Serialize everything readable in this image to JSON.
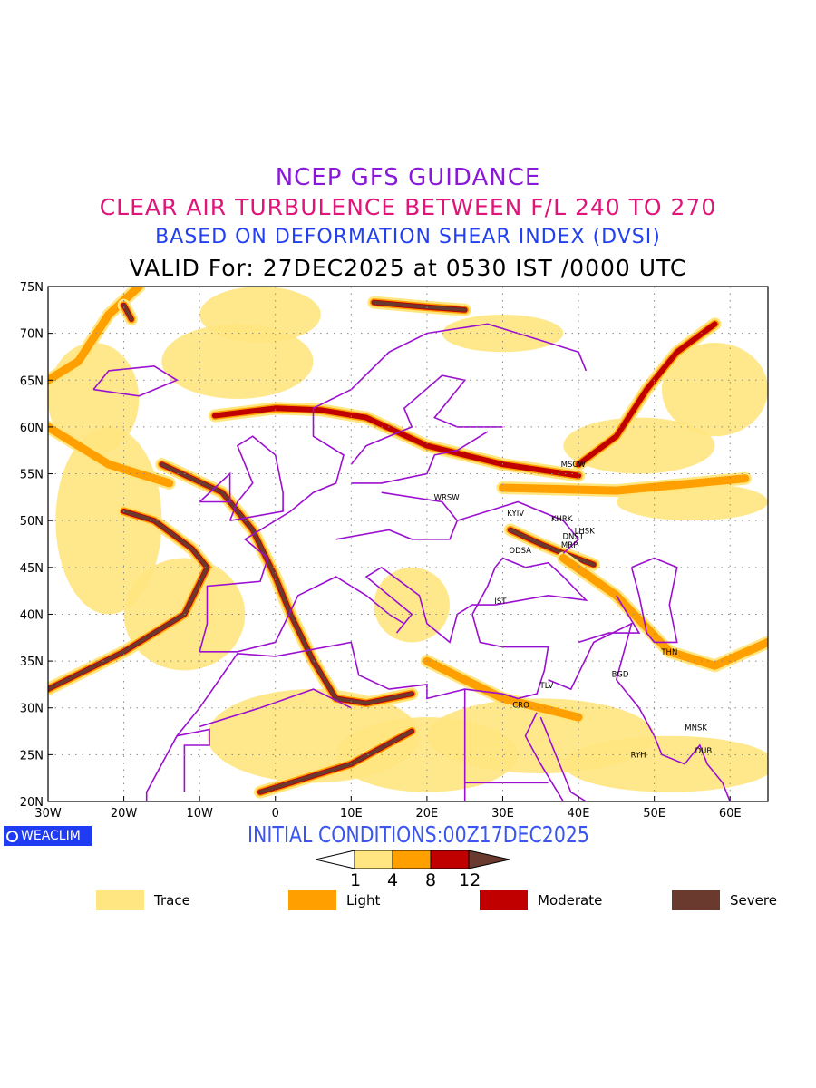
{
  "titles": {
    "line1": "NCEP GFS GUIDANCE",
    "line2": "CLEAR AIR TURBULENCE BETWEEN F/L 240 TO 270",
    "line3": "BASED ON DEFORMATION SHEAR INDEX (DVSI)",
    "line4": "VALID For: 27DEC2025 at 0530 IST /0000 UTC"
  },
  "map": {
    "lon_range": [
      -30,
      65
    ],
    "lat_range": [
      20,
      75
    ],
    "lon_ticks": [
      "30W",
      "20W",
      "10W",
      "0",
      "10E",
      "20E",
      "30E",
      "40E",
      "50E",
      "60E"
    ],
    "lat_ticks": [
      "75N",
      "70N",
      "65N",
      "60N",
      "55N",
      "50N",
      "45N",
      "40N",
      "35N",
      "30N",
      "25N",
      "20N"
    ],
    "cities": [
      {
        "name": "MSCW",
        "lon": 39.3,
        "lat": 56.0
      },
      {
        "name": "WRSW",
        "lon": 22.6,
        "lat": 52.5
      },
      {
        "name": "KYIV",
        "lon": 31.7,
        "lat": 50.8
      },
      {
        "name": "KHRK",
        "lon": 37.8,
        "lat": 50.2
      },
      {
        "name": "LHSK",
        "lon": 40.8,
        "lat": 48.9
      },
      {
        "name": "DNST",
        "lon": 39.3,
        "lat": 48.3
      },
      {
        "name": "MRP",
        "lon": 38.8,
        "lat": 47.4
      },
      {
        "name": "ODSA",
        "lon": 32.3,
        "lat": 46.8
      },
      {
        "name": "IST",
        "lon": 29.7,
        "lat": 41.4
      },
      {
        "name": "THN",
        "lon": 52.0,
        "lat": 36.0
      },
      {
        "name": "BGD",
        "lon": 45.5,
        "lat": 33.6
      },
      {
        "name": "TLV",
        "lon": 35.8,
        "lat": 32.4
      },
      {
        "name": "CRO",
        "lon": 32.4,
        "lat": 30.3
      },
      {
        "name": "MNSK",
        "lon": 55.5,
        "lat": 27.9
      },
      {
        "name": "DUB",
        "lon": 56.5,
        "lat": 25.4
      },
      {
        "name": "RYH",
        "lon": 47.9,
        "lat": 25.0
      }
    ]
  },
  "logo": "WEACLIM",
  "initial_conditions": "INITIAL CONDITIONS:00Z17DEC2025",
  "colorbar": {
    "thresholds": [
      "1",
      "4",
      "8",
      "12"
    ],
    "colors": {
      "trace": "#ffe680",
      "light": "#ffa000",
      "moderate": "#c00000",
      "severe": "#6b3a2e"
    }
  },
  "legend": [
    {
      "label": "Trace",
      "color": "#ffe680"
    },
    {
      "label": "Light",
      "color": "#ffa000"
    },
    {
      "label": "Moderate",
      "color": "#c00000"
    },
    {
      "label": "Severe",
      "color": "#6b3a2e"
    }
  ]
}
